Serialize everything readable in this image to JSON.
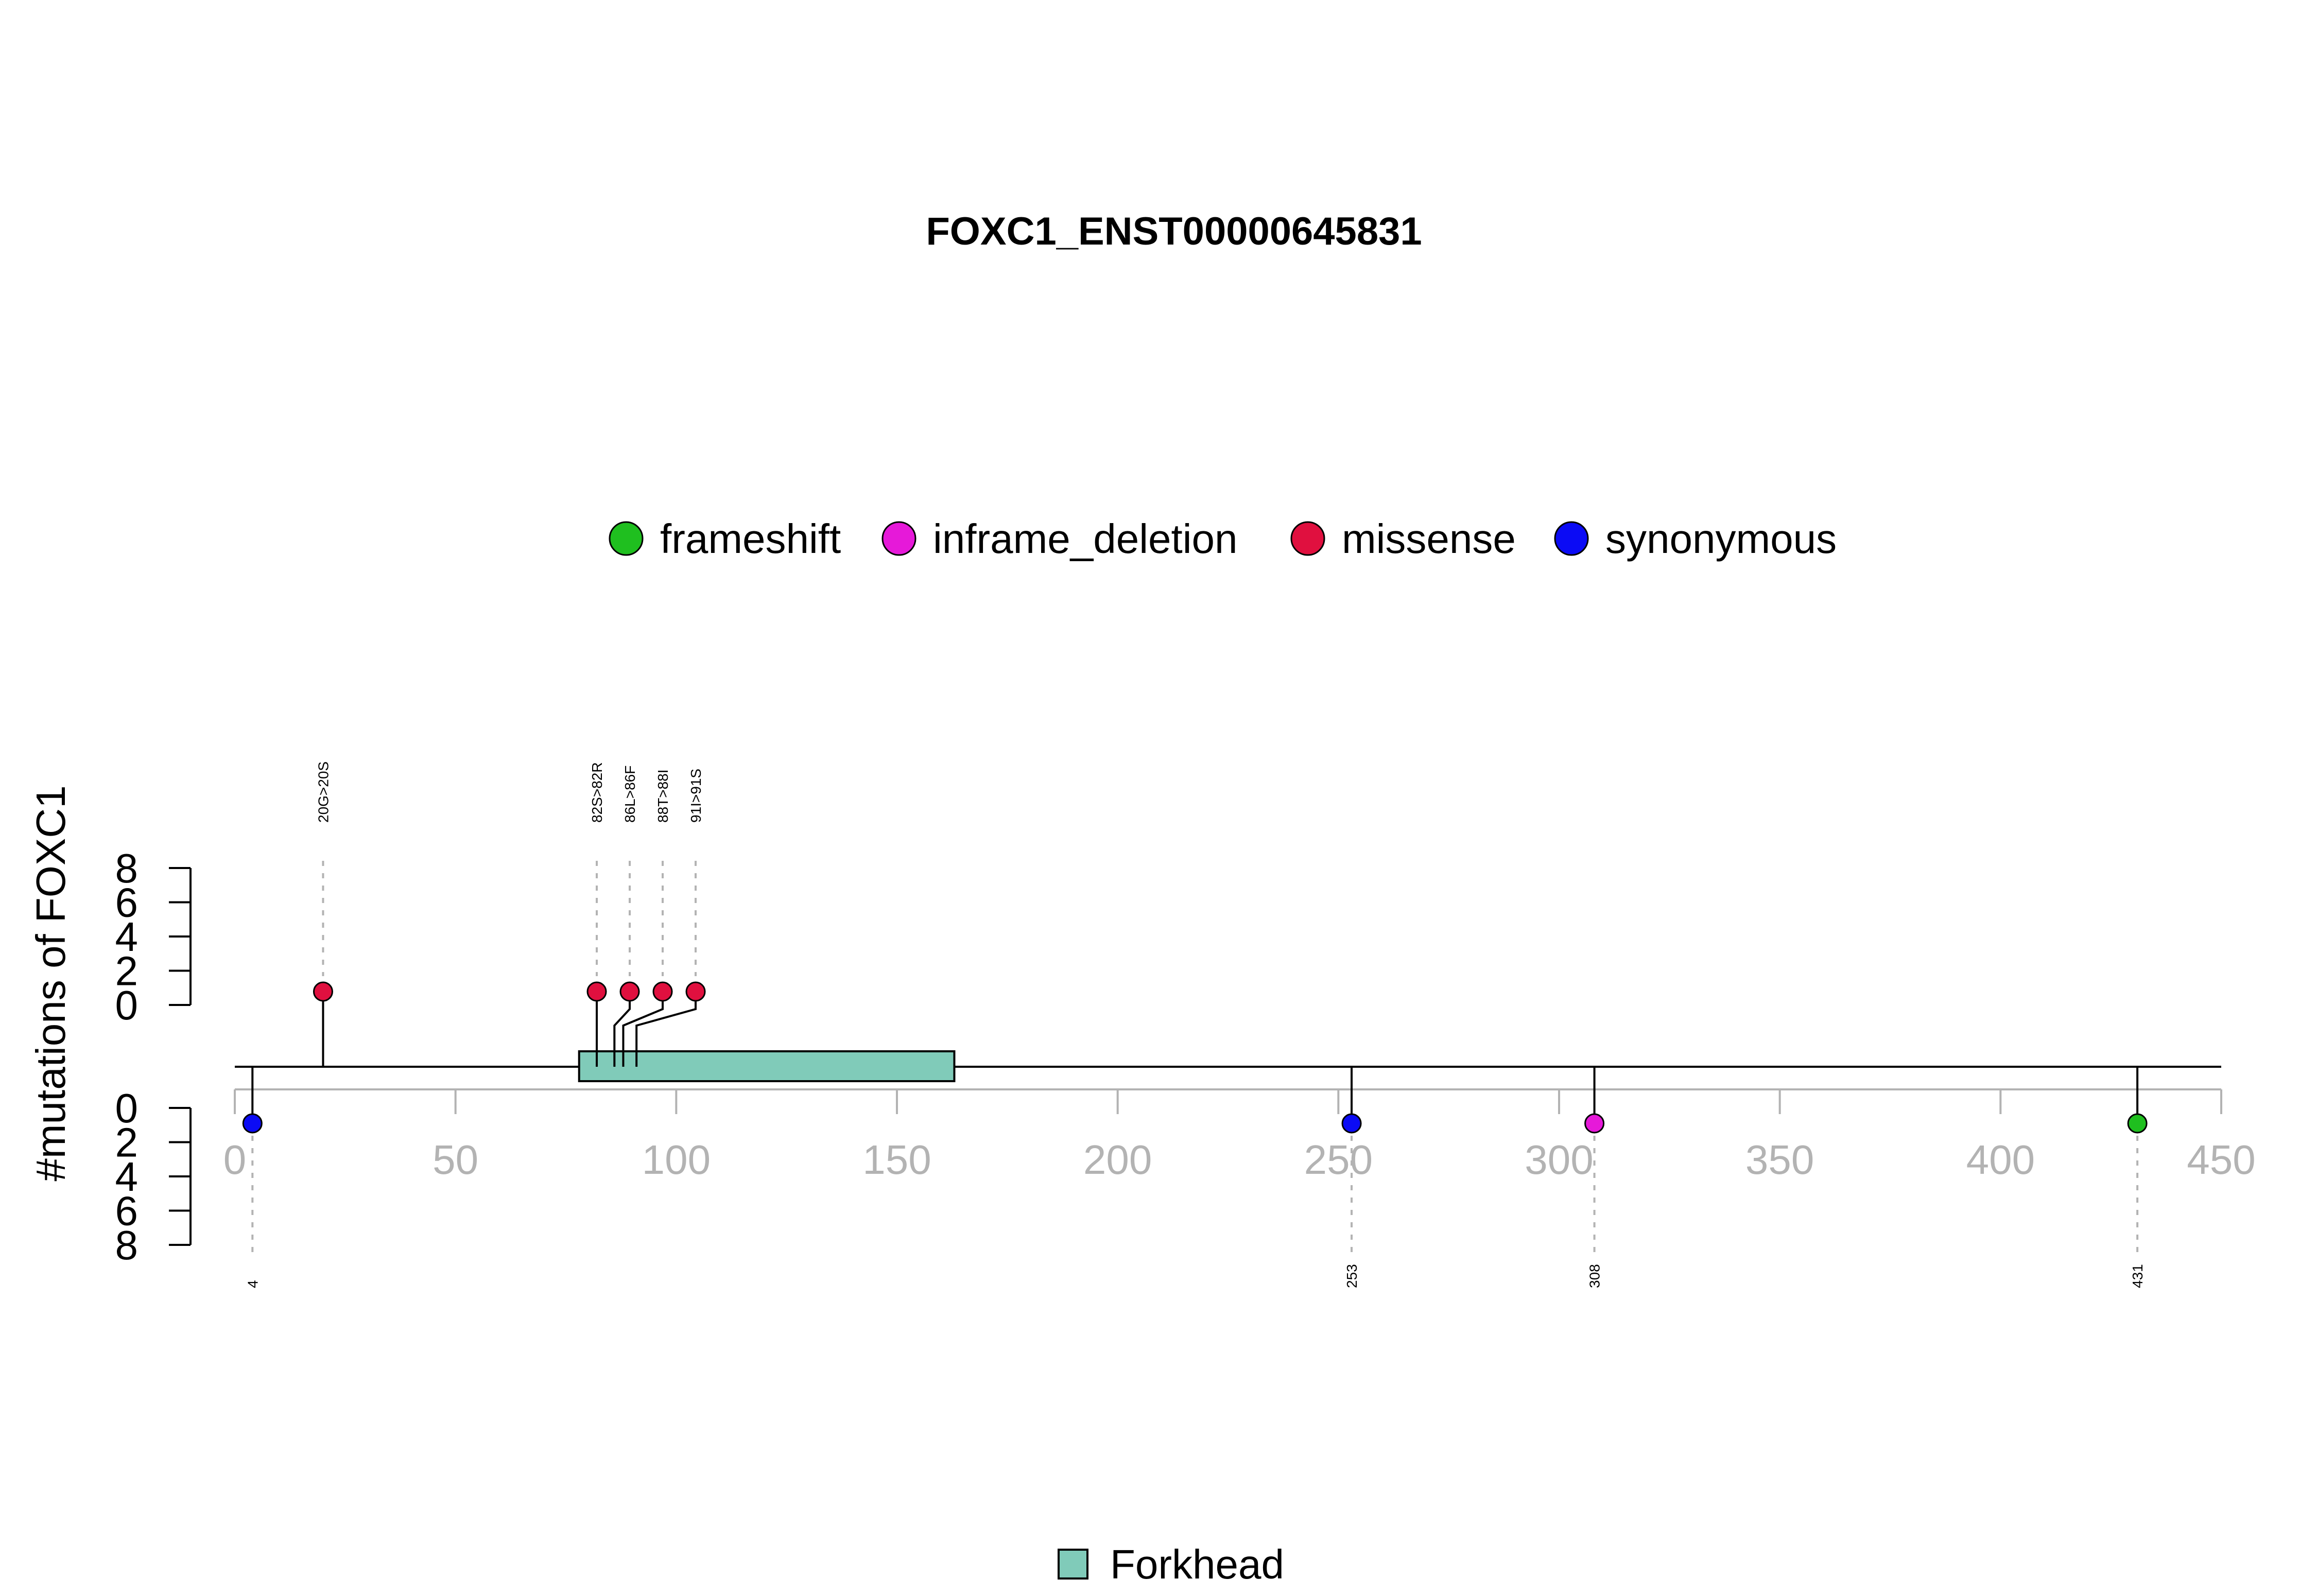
{
  "chart_data": {
    "type": "lollipop",
    "title": "FOXC1_ENST00000645831",
    "ylabel": "#mutations of FOXC1",
    "xlim": [
      0,
      450
    ],
    "x_ticks": [
      0,
      50,
      100,
      150,
      200,
      250,
      300,
      350,
      400,
      450
    ],
    "ylim": [
      0,
      8
    ],
    "y_ticks": [
      0,
      2,
      4,
      6,
      8
    ],
    "legend": [
      {
        "name": "frameshift",
        "color": "#1fbf1f"
      },
      {
        "name": "inframe_deletion",
        "color": "#e619d9"
      },
      {
        "name": "missense",
        "color": "#e0103f"
      },
      {
        "name": "synonymous",
        "color": "#0b0bf5"
      }
    ],
    "domains": [
      {
        "name": "Forkhead",
        "start": 78,
        "end": 163,
        "color": "#80cbb9"
      }
    ],
    "mutations_top": [
      {
        "label": "20G>20S",
        "position": 20,
        "count": 1,
        "type": "missense"
      },
      {
        "label": "82S>82R",
        "position": 82,
        "count": 1,
        "type": "missense"
      },
      {
        "label": "86L>86F",
        "position": 86,
        "count": 1,
        "type": "missense"
      },
      {
        "label": "88T>88I",
        "position": 88,
        "count": 1,
        "type": "missense"
      },
      {
        "label": "91I>91S",
        "position": 91,
        "count": 1,
        "type": "missense"
      }
    ],
    "mutations_bottom": [
      {
        "label": "4",
        "position": 4,
        "count": 1,
        "type": "synonymous"
      },
      {
        "label": "253",
        "position": 253,
        "count": 1,
        "type": "synonymous"
      },
      {
        "label": "308",
        "position": 308,
        "count": 1,
        "type": "inframe_deletion"
      },
      {
        "label": "431",
        "position": 431,
        "count": 1,
        "type": "frameshift"
      }
    ]
  }
}
